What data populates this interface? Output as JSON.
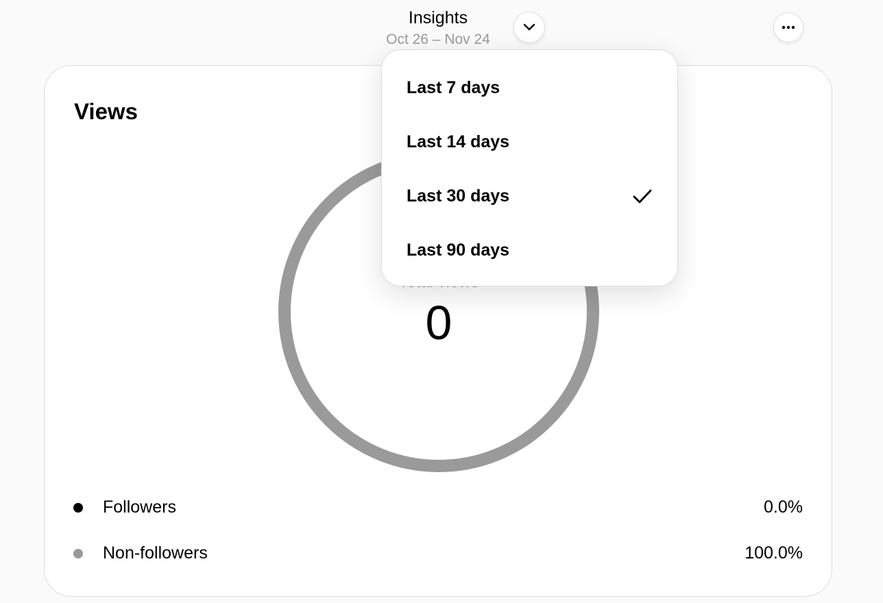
{
  "header": {
    "title": "Insights",
    "date_range": "Oct 26 – Nov 24"
  },
  "card": {
    "title": "Views",
    "total_label": "Total views",
    "total_value": "0",
    "ring_color": "#9a9a9a",
    "legend": [
      {
        "label": "Followers",
        "value": "0.0%",
        "color": "#000000"
      },
      {
        "label": "Non-followers",
        "value": "100.0%",
        "color": "#9a9a9a"
      }
    ]
  },
  "dropdown": {
    "items": [
      {
        "label": "Last 7 days",
        "selected": false
      },
      {
        "label": "Last 14 days",
        "selected": false
      },
      {
        "label": "Last 30 days",
        "selected": true
      },
      {
        "label": "Last 90 days",
        "selected": false
      }
    ]
  }
}
